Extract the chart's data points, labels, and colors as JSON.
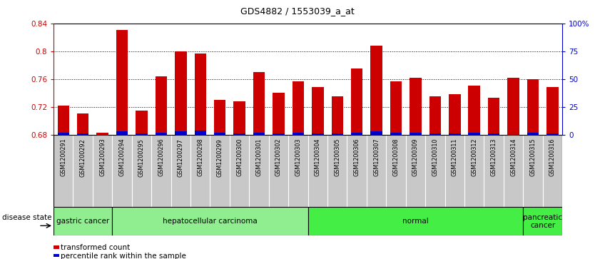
{
  "title": "GDS4882 / 1553039_a_at",
  "samples": [
    "GSM1200291",
    "GSM1200292",
    "GSM1200293",
    "GSM1200294",
    "GSM1200295",
    "GSM1200296",
    "GSM1200297",
    "GSM1200298",
    "GSM1200299",
    "GSM1200300",
    "GSM1200301",
    "GSM1200302",
    "GSM1200303",
    "GSM1200304",
    "GSM1200305",
    "GSM1200306",
    "GSM1200307",
    "GSM1200308",
    "GSM1200309",
    "GSM1200310",
    "GSM1200311",
    "GSM1200312",
    "GSM1200313",
    "GSM1200314",
    "GSM1200315",
    "GSM1200316"
  ],
  "transformed_count": [
    0.722,
    0.71,
    0.683,
    0.83,
    0.715,
    0.764,
    0.8,
    0.797,
    0.73,
    0.728,
    0.77,
    0.74,
    0.757,
    0.748,
    0.735,
    0.775,
    0.808,
    0.757,
    0.762,
    0.735,
    0.738,
    0.75,
    0.733,
    0.762,
    0.76,
    0.748
  ],
  "percentile_rank": [
    2,
    1,
    0,
    3,
    1,
    2,
    3,
    4,
    2,
    1,
    2,
    1,
    2,
    1,
    1,
    2,
    3,
    2,
    2,
    1,
    1,
    2,
    1,
    0,
    2,
    1
  ],
  "group_data": [
    {
      "label": "gastric cancer",
      "start": 0,
      "end": 3,
      "color": "#90EE90"
    },
    {
      "label": "hepatocellular carcinoma",
      "start": 3,
      "end": 13,
      "color": "#90EE90"
    },
    {
      "label": "normal",
      "start": 13,
      "end": 24,
      "color": "#44EE44"
    },
    {
      "label": "pancreatic\ncancer",
      "start": 24,
      "end": 26,
      "color": "#44EE44"
    }
  ],
  "ylim_left": [
    0.68,
    0.84
  ],
  "ylim_right": [
    0,
    100
  ],
  "yticks_left": [
    0.68,
    0.72,
    0.76,
    0.8,
    0.84
  ],
  "yticks_right": [
    0,
    25,
    50,
    75,
    100
  ],
  "ytick_right_labels": [
    "0",
    "25",
    "50",
    "75",
    "100%"
  ],
  "bar_color_red": "#CC0000",
  "bar_color_blue": "#0000CC",
  "plot_bg": "#FFFFFF",
  "xlabel_bg": "#C8C8C8",
  "left_axis_color": "#CC0000",
  "right_axis_color": "#0000CC"
}
